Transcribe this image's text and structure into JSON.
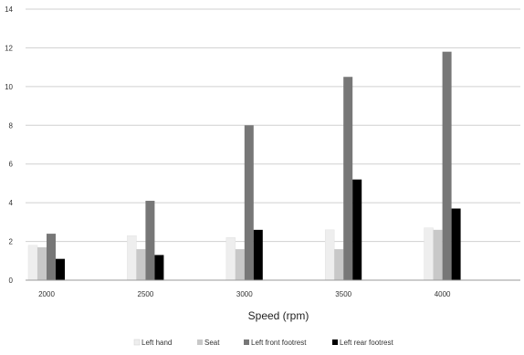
{
  "chart_data": {
    "type": "bar",
    "title": "",
    "xlabel": "Speed (rpm)",
    "ylabel": "",
    "categories": [
      "2000",
      "2500",
      "3000",
      "3500",
      "4000"
    ],
    "ylim": [
      0,
      14
    ],
    "yticks": [
      "0",
      "2",
      "4",
      "6",
      "8",
      "10",
      "12",
      "14"
    ],
    "grid": true,
    "legend_position": "bottom",
    "series": [
      {
        "name": "Left hand",
        "color": "#eeeeee",
        "values": [
          1.8,
          2.3,
          2.2,
          2.6,
          2.7
        ]
      },
      {
        "name": "Seat",
        "color": "#c8c8c8",
        "values": [
          1.7,
          1.6,
          1.6,
          1.6,
          2.6
        ]
      },
      {
        "name": "Left front footrest",
        "color": "#777777",
        "values": [
          2.4,
          4.1,
          8.0,
          10.5,
          11.8
        ]
      },
      {
        "name": "Left rear footrest",
        "color": "#000000",
        "values": [
          1.1,
          1.3,
          2.6,
          5.2,
          3.7
        ]
      }
    ]
  }
}
